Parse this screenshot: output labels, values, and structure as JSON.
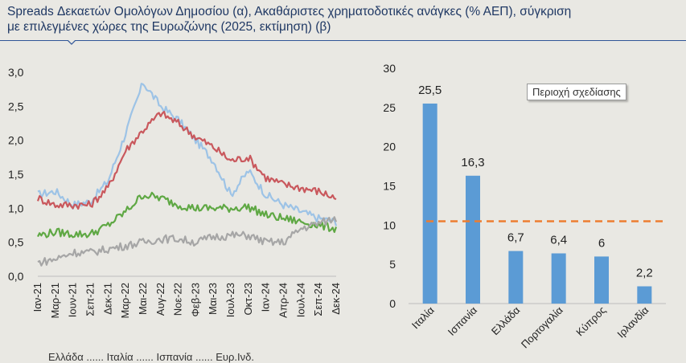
{
  "title": "Spreads Δεκαετών Ομολόγων Δημοσίου (α), Ακαθάριστες χρηματοδοτικές ανάγκες (% ΑΕΠ), σύγκριση\nμε επιλεγμένες χώρες της Ευρωζώνης (2025, εκτίμηση) (β)",
  "plot_area_label": "Περιοχή σχεδίασης",
  "footnote": "Ελλάδα  ......  Ιταλία  ......  Ισπανία  ......  Ευρ.Ινδ.",
  "colors": {
    "light_blue": "#9dc3e6",
    "red": "#c9585d",
    "green": "#5fa844",
    "gray": "#a6a6a6",
    "bar": "#5b9bd5",
    "dashed": "#ed7d31"
  },
  "chart_data": [
    {
      "type": "line",
      "title": "",
      "xlabel": "",
      "ylabel": "",
      "ylim": [
        0,
        3
      ],
      "y_ticks": [
        "0,0",
        "0,5",
        "1,0",
        "1,5",
        "2,0",
        "2,5",
        "3,0"
      ],
      "y_tick_values": [
        0,
        0.5,
        1,
        1.5,
        2,
        2.5,
        3
      ],
      "x_ticks": [
        "Ιαν-21",
        "Μαρ-21",
        "Ιουν-21",
        "Σεπ-21",
        "Δεκ-21",
        "Μαρ-22",
        "Μαι-22",
        "Αυγ-22",
        "Νοε-22",
        "Φεβ-23",
        "Μαι-23",
        "Ιουλ-23",
        "Οκτ-23",
        "Ιαν-24",
        "Απρ-24",
        "Ιουλ-24",
        "Σεπ-24",
        "Δεκ-24"
      ],
      "grid": false,
      "series": [
        {
          "color_key": "light_blue",
          "x": [
            "Ιαν-21",
            "Μαρ-21",
            "Ιουν-21",
            "Σεπ-21",
            "Δεκ-21",
            "Μαρ-22",
            "Μαι-22",
            "Αυγ-22",
            "Νοε-22",
            "Φεβ-23",
            "Μαι-23",
            "Ιουλ-23",
            "Οκτ-23",
            "Ιαν-24",
            "Απρ-24",
            "Ιουλ-24",
            "Σεπ-24",
            "Δεκ-24"
          ],
          "values": [
            1.2,
            1.25,
            1.05,
            1.1,
            1.4,
            2.1,
            2.85,
            2.5,
            2.3,
            2.0,
            1.7,
            1.2,
            1.55,
            1.2,
            1.05,
            0.95,
            0.85,
            0.8
          ]
        },
        {
          "color_key": "red",
          "x": [
            "Ιαν-21",
            "Μαρ-21",
            "Ιουν-21",
            "Σεπ-21",
            "Δεκ-21",
            "Μαρ-22",
            "Μαι-22",
            "Αυγ-22",
            "Νοε-22",
            "Φεβ-23",
            "Μαι-23",
            "Ιουλ-23",
            "Οκτ-23",
            "Ιαν-24",
            "Απρ-24",
            "Ιουλ-24",
            "Σεπ-24",
            "Δεκ-24"
          ],
          "values": [
            1.15,
            1.05,
            1.05,
            1.05,
            1.3,
            1.85,
            2.15,
            2.4,
            2.25,
            2.05,
            1.9,
            1.7,
            1.75,
            1.45,
            1.35,
            1.3,
            1.25,
            1.15
          ]
        },
        {
          "color_key": "green",
          "x": [
            "Ιαν-21",
            "Μαρ-21",
            "Ιουν-21",
            "Σεπ-21",
            "Δεκ-21",
            "Μαρ-22",
            "Μαι-22",
            "Αυγ-22",
            "Νοε-22",
            "Φεβ-23",
            "Μαι-23",
            "Ιουλ-23",
            "Οκτ-23",
            "Ιαν-24",
            "Απρ-24",
            "Ιουλ-24",
            "Σεπ-24",
            "Δεκ-24"
          ],
          "values": [
            0.6,
            0.65,
            0.62,
            0.62,
            0.75,
            0.95,
            1.2,
            1.15,
            1.05,
            1.0,
            1.0,
            1.0,
            1.02,
            0.9,
            0.85,
            0.8,
            0.75,
            0.7
          ]
        },
        {
          "color_key": "gray",
          "x": [
            "Ιαν-21",
            "Μαρ-21",
            "Ιουν-21",
            "Σεπ-21",
            "Δεκ-21",
            "Μαρ-22",
            "Μαι-22",
            "Αυγ-22",
            "Νοε-22",
            "Φεβ-23",
            "Μαι-23",
            "Ιουλ-23",
            "Οκτ-23",
            "Ιαν-24",
            "Απρ-24",
            "Ιουλ-24",
            "Σεπ-24",
            "Δεκ-24"
          ],
          "values": [
            0.2,
            0.25,
            0.35,
            0.35,
            0.4,
            0.45,
            0.5,
            0.55,
            0.55,
            0.5,
            0.58,
            0.6,
            0.6,
            0.5,
            0.5,
            0.7,
            0.78,
            0.85
          ]
        }
      ]
    },
    {
      "type": "bar",
      "title": "",
      "xlabel": "",
      "ylabel": "",
      "ylim": [
        0,
        30
      ],
      "y_ticks": [
        "0",
        "5",
        "10",
        "15",
        "20",
        "25",
        "30"
      ],
      "y_tick_values": [
        0,
        5,
        10,
        15,
        20,
        25,
        30
      ],
      "categories": [
        "Ιταλία",
        "Ισπανία",
        "Ελλάδα",
        "Πορτογαλία",
        "Κύπρος",
        "Ιρλανδία"
      ],
      "values": [
        25.5,
        16.3,
        6.7,
        6.4,
        6,
        2.2
      ],
      "value_labels": [
        "25,5",
        "16,3",
        "6,7",
        "6,4",
        "6",
        "2,2"
      ],
      "reference_line": 10.5,
      "grid": false
    }
  ]
}
